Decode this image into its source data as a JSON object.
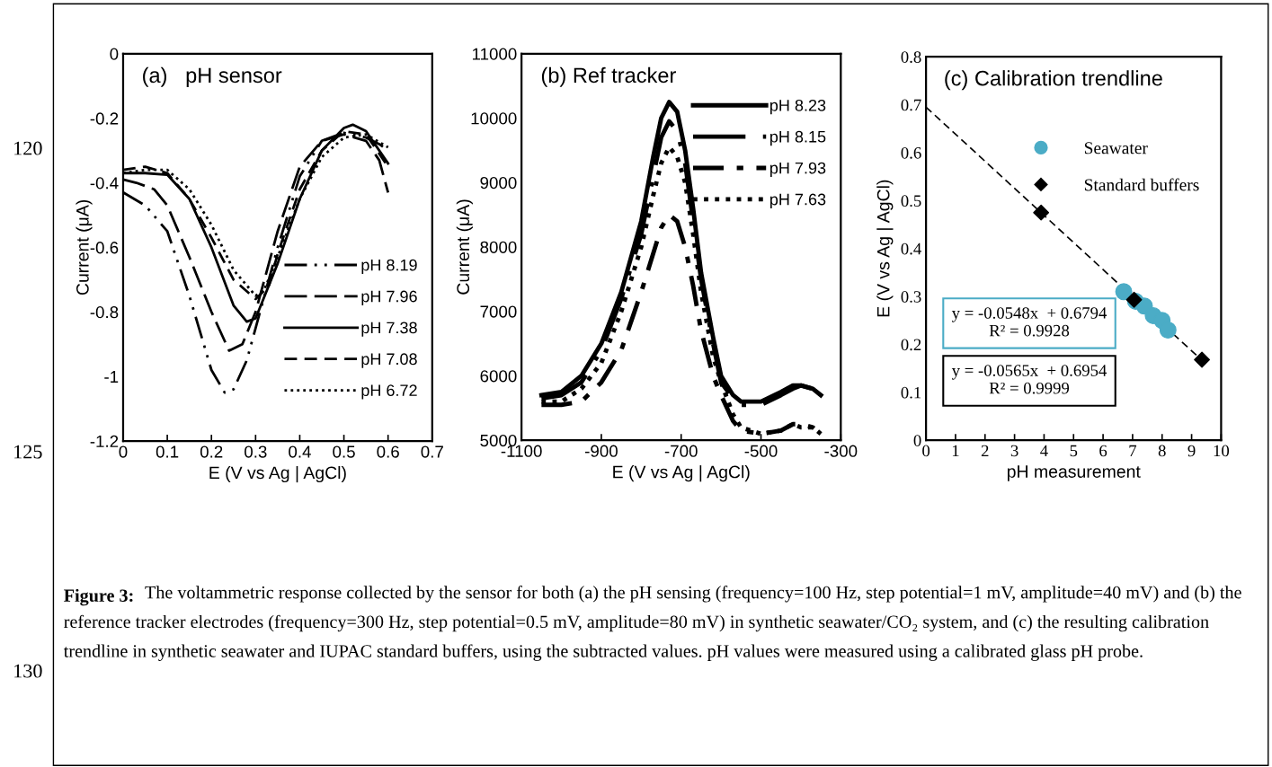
{
  "chart_data": [
    {
      "type": "line",
      "title": "(a)   pH sensor",
      "xlabel": "E (V vs Ag | AgCl)",
      "ylabel": "Current (μA)",
      "xlim": [
        0,
        0.7
      ],
      "xticks": [
        0,
        0.1,
        0.2,
        0.3,
        0.4,
        0.5,
        0.6,
        0.7
      ],
      "ylim": [
        -1.2,
        0
      ],
      "yticks": [
        0,
        -0.2,
        -0.4,
        -0.6,
        -0.8,
        -1,
        -1.2
      ],
      "grid": false,
      "legend": "bottom right",
      "marker": "none",
      "series": [
        {
          "name": "pH 8.19",
          "color": "#000000",
          "line_style": "dashdotdot",
          "x": [
            0,
            0.05,
            0.1,
            0.15,
            0.2,
            0.23,
            0.25,
            0.28,
            0.3,
            0.35,
            0.4,
            0.45,
            0.5,
            0.55,
            0.58,
            0.6
          ],
          "values": [
            -0.43,
            -0.47,
            -0.55,
            -0.75,
            -0.98,
            -1.05,
            -1.04,
            -0.95,
            -0.85,
            -0.6,
            -0.38,
            -0.27,
            -0.245,
            -0.26,
            -0.28,
            -0.3
          ]
        },
        {
          "name": "pH 7.96",
          "color": "#000000",
          "line_style": "longdash",
          "x": [
            0,
            0.03,
            0.07,
            0.1,
            0.15,
            0.2,
            0.24,
            0.27,
            0.3,
            0.35,
            0.4,
            0.45,
            0.5,
            0.55,
            0.58,
            0.6
          ],
          "values": [
            -0.39,
            -0.4,
            -0.42,
            -0.47,
            -0.63,
            -0.8,
            -0.92,
            -0.9,
            -0.8,
            -0.55,
            -0.35,
            -0.27,
            -0.25,
            -0.27,
            -0.33,
            -0.43
          ]
        },
        {
          "name": "pH 7.38",
          "color": "#000000",
          "line_style": "solid",
          "x": [
            0,
            0.05,
            0.1,
            0.15,
            0.2,
            0.25,
            0.28,
            0.3,
            0.35,
            0.4,
            0.45,
            0.5,
            0.52,
            0.55,
            0.6
          ],
          "values": [
            -0.37,
            -0.37,
            -0.375,
            -0.45,
            -0.6,
            -0.78,
            -0.83,
            -0.82,
            -0.65,
            -0.45,
            -0.3,
            -0.23,
            -0.22,
            -0.24,
            -0.34
          ]
        },
        {
          "name": "pH 7.08",
          "color": "#000000",
          "line_style": "dashed",
          "x": [
            0,
            0.05,
            0.1,
            0.15,
            0.2,
            0.25,
            0.3,
            0.33,
            0.35,
            0.4,
            0.45,
            0.5,
            0.55,
            0.6
          ],
          "values": [
            -0.36,
            -0.35,
            -0.37,
            -0.45,
            -0.57,
            -0.7,
            -0.76,
            -0.72,
            -0.62,
            -0.42,
            -0.3,
            -0.24,
            -0.25,
            -0.35
          ]
        },
        {
          "name": "pH 6.72",
          "color": "#000000",
          "line_style": "dotted",
          "x": [
            0,
            0.05,
            0.1,
            0.15,
            0.2,
            0.25,
            0.3,
            0.32,
            0.35,
            0.4,
            0.45,
            0.5,
            0.55,
            0.6
          ],
          "values": [
            -0.37,
            -0.36,
            -0.36,
            -0.42,
            -0.53,
            -0.67,
            -0.75,
            -0.73,
            -0.63,
            -0.45,
            -0.32,
            -0.26,
            -0.25,
            -0.29
          ]
        }
      ]
    },
    {
      "type": "line",
      "title": "(b) Ref tracker",
      "xlabel": "E (V vs Ag | AgCl)",
      "ylabel": "Current (μA)",
      "xlim": [
        -1100,
        -300
      ],
      "xticks": [
        -1100,
        -900,
        -700,
        -500,
        -300
      ],
      "ylim": [
        5000,
        11000
      ],
      "yticks": [
        5000,
        6000,
        7000,
        8000,
        9000,
        10000,
        11000
      ],
      "grid": false,
      "legend": "top right",
      "marker": "none",
      "x": [
        -1050,
        -1000,
        -950,
        -900,
        -850,
        -800,
        -770,
        -750,
        -730,
        -710,
        -690,
        -670,
        -650,
        -620,
        -600,
        -570,
        -550,
        -500,
        -450,
        -420,
        -400,
        -370,
        -350
      ],
      "series": [
        {
          "name": "pH 8.23",
          "color": "#000000",
          "line_style": "solid",
          "values": [
            5700,
            5750,
            6000,
            6500,
            7300,
            8400,
            9400,
            10000,
            10250,
            10100,
            9500,
            8600,
            7600,
            6600,
            6000,
            5700,
            5600,
            5600,
            5750,
            5850,
            5850,
            5800,
            5700
          ]
        },
        {
          "name": "pH 8.15",
          "color": "#000000",
          "line_style": "longdashdot",
          "values": [
            5650,
            5700,
            5900,
            6400,
            7200,
            8200,
            9100,
            9700,
            9950,
            9800,
            9300,
            8400,
            7500,
            6500,
            5900,
            5650,
            5550,
            5550,
            5700,
            5800,
            5850,
            5800,
            5700
          ]
        },
        {
          "name": "pH 7.93",
          "color": "#000000",
          "line_style": "dashdot",
          "values": [
            5550,
            5550,
            5600,
            5900,
            6400,
            7300,
            7900,
            8300,
            8500,
            8400,
            8000,
            7400,
            6700,
            6000,
            5700,
            5300,
            5150,
            5100,
            5150,
            5250,
            5250,
            5200,
            5100
          ]
        },
        {
          "name": "pH 7.63",
          "color": "#000000",
          "line_style": "dotted",
          "values": [
            5600,
            5600,
            5800,
            6200,
            7000,
            8000,
            8800,
            9300,
            9550,
            9400,
            9000,
            8200,
            7300,
            6300,
            5900,
            5400,
            5200,
            5100,
            5150,
            5250,
            5200,
            5200,
            5100
          ]
        }
      ]
    },
    {
      "type": "scatter",
      "title": "(c) Calibration trendline",
      "xlabel": "pH measurement",
      "ylabel": "E (V vs Ag | AgCl)",
      "xlim": [
        0,
        10
      ],
      "xticks": [
        0,
        1,
        2,
        3,
        4,
        5,
        6,
        7,
        8,
        9,
        10
      ],
      "ylim": [
        0,
        0.8
      ],
      "yticks": [
        0,
        0.1,
        0.2,
        0.3,
        0.4,
        0.5,
        0.6,
        0.7,
        0.8
      ],
      "grid": false,
      "legend": "top right",
      "series": [
        {
          "type": "line",
          "color": "#000000",
          "line_style": "dashed",
          "marker": "none",
          "x": [
            0,
            9.4
          ],
          "values": [
            0.695,
            0.164
          ]
        },
        {
          "name": "Seawater",
          "color": "#4bacc6",
          "marker": "circle",
          "x": [
            6.7,
            7.1,
            7.4,
            7.7,
            8.0,
            8.2
          ],
          "values": [
            0.31,
            0.29,
            0.28,
            0.26,
            0.25,
            0.23
          ]
        },
        {
          "name": "Standard buffers",
          "color": "#000000",
          "marker": "diamond",
          "x": [
            3.9,
            7.05,
            9.35
          ],
          "values": [
            0.475,
            0.293,
            0.168
          ]
        }
      ],
      "annotations": [
        "y = -0.0548x  + 0.6794\nR² = 0.9928",
        "y = -0.0565x  + 0.6954\nR² = 0.9999"
      ]
    },
    {
      "type": "other",
      "annotations": [
        "120",
        "125",
        "130",
        "Figure 3:",
        "The voltammetric response collected by the sensor for both (a) the pH sensing (frequency=100 Hz, step potential=1 mV, amplitude=40 mV) and (b) the reference tracker electrodes (frequency=300 Hz, step potential=0.5 mV, amplitude=80 mV) in synthetic seawater/CO₂ system, and (c) the resulting calibration trendline in synthetic seawater and IUPAC standard buffers, using the subtracted values. pH values were measured using a calibrated glass pH probe."
      ]
    }
  ]
}
